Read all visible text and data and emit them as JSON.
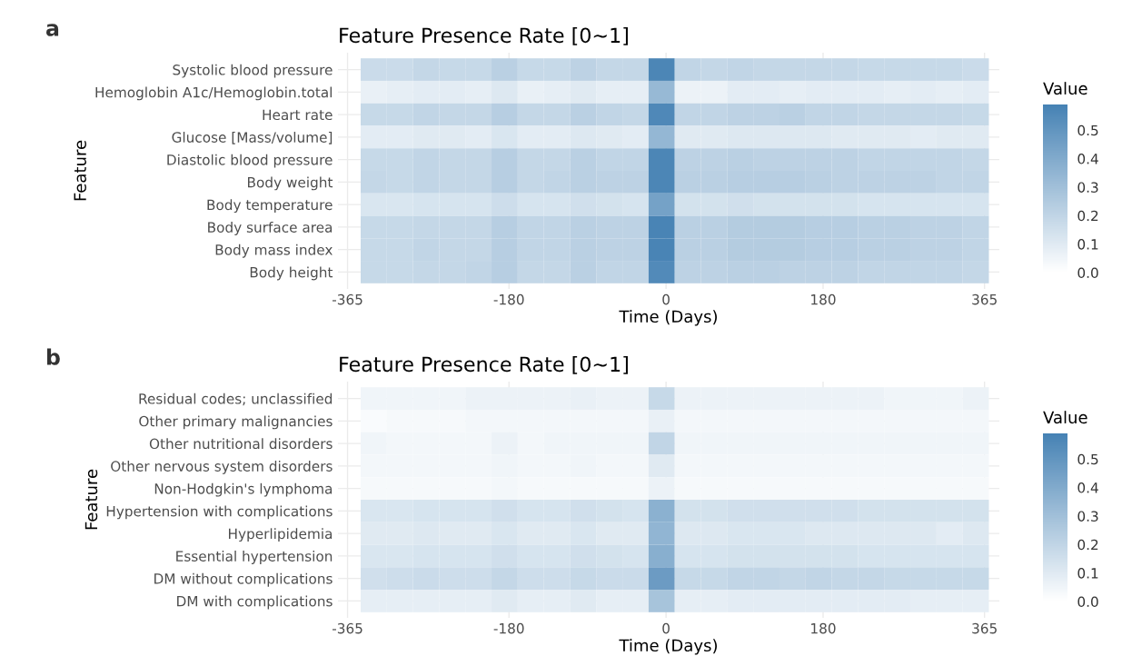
{
  "chart_data": [
    {
      "type": "heatmap",
      "title": "Feature Presence Rate [0~1]",
      "xlabel": "Time (Days)",
      "ylabel": "Feature",
      "clabel": "Value",
      "annotations": [
        "a"
      ],
      "x": [
        -335,
        -305,
        -275,
        -245,
        -215,
        -185,
        -155,
        -125,
        -95,
        -65,
        -35,
        -5,
        25,
        55,
        85,
        115,
        145,
        175,
        205,
        235,
        265,
        295,
        325,
        355
      ],
      "xlim": [
        -376,
        382
      ],
      "xticks": [
        -365,
        -180,
        0,
        180,
        365
      ],
      "grid": true,
      "colors": [
        "#ffffff",
        "#4682b4"
      ],
      "clim": [
        0,
        0.59
      ],
      "cticks": [
        {
          "value": 0,
          "label": "0.0"
        },
        {
          "value": 0.1,
          "label": "0.1"
        },
        {
          "value": 0.2,
          "label": "0.2"
        },
        {
          "value": 0.3,
          "label": "0.3"
        },
        {
          "value": 0.4,
          "label": "0.4"
        },
        {
          "value": 0.5,
          "label": "0.5"
        }
      ],
      "y_categories": [
        "Systolic blood pressure",
        "Hemoglobin A1c/Hemoglobin.total",
        "Heart rate",
        "Glucose [Mass/volume]",
        "Diastolic blood pressure",
        "Body weight",
        "Body temperature",
        "Body surface area",
        "Body mass index",
        "Body height"
      ],
      "cells": [
        [
          0.17,
          0.17,
          0.19,
          0.18,
          0.18,
          0.22,
          0.18,
          0.18,
          0.21,
          0.19,
          0.19,
          0.57,
          0.2,
          0.19,
          0.2,
          0.19,
          0.19,
          0.19,
          0.19,
          0.18,
          0.18,
          0.18,
          0.18,
          0.17
        ],
        [
          0.07,
          0.08,
          0.09,
          0.09,
          0.08,
          0.11,
          0.07,
          0.08,
          0.1,
          0.08,
          0.08,
          0.33,
          0.06,
          0.06,
          0.09,
          0.09,
          0.08,
          0.09,
          0.09,
          0.09,
          0.08,
          0.09,
          0.08,
          0.09
        ],
        [
          0.18,
          0.18,
          0.2,
          0.19,
          0.19,
          0.23,
          0.19,
          0.19,
          0.22,
          0.2,
          0.19,
          0.56,
          0.2,
          0.2,
          0.21,
          0.21,
          0.22,
          0.2,
          0.2,
          0.19,
          0.19,
          0.19,
          0.19,
          0.18
        ],
        [
          0.09,
          0.09,
          0.1,
          0.1,
          0.09,
          0.12,
          0.09,
          0.09,
          0.11,
          0.1,
          0.09,
          0.34,
          0.1,
          0.1,
          0.11,
          0.11,
          0.11,
          0.11,
          0.1,
          0.1,
          0.1,
          0.09,
          0.1,
          0.1
        ],
        [
          0.18,
          0.18,
          0.2,
          0.19,
          0.19,
          0.23,
          0.19,
          0.19,
          0.22,
          0.2,
          0.2,
          0.57,
          0.21,
          0.21,
          0.22,
          0.21,
          0.21,
          0.21,
          0.21,
          0.2,
          0.2,
          0.2,
          0.2,
          0.19
        ],
        [
          0.19,
          0.18,
          0.2,
          0.19,
          0.19,
          0.23,
          0.19,
          0.2,
          0.22,
          0.21,
          0.21,
          0.57,
          0.22,
          0.22,
          0.23,
          0.23,
          0.23,
          0.22,
          0.21,
          0.21,
          0.21,
          0.21,
          0.2,
          0.2
        ],
        [
          0.12,
          0.12,
          0.13,
          0.13,
          0.13,
          0.16,
          0.13,
          0.13,
          0.15,
          0.14,
          0.13,
          0.44,
          0.14,
          0.14,
          0.15,
          0.14,
          0.14,
          0.14,
          0.14,
          0.13,
          0.13,
          0.13,
          0.13,
          0.13
        ],
        [
          0.18,
          0.18,
          0.19,
          0.19,
          0.19,
          0.23,
          0.2,
          0.2,
          0.22,
          0.21,
          0.21,
          0.58,
          0.22,
          0.22,
          0.24,
          0.24,
          0.24,
          0.23,
          0.23,
          0.22,
          0.22,
          0.21,
          0.21,
          0.2
        ],
        [
          0.18,
          0.18,
          0.2,
          0.19,
          0.19,
          0.23,
          0.2,
          0.2,
          0.22,
          0.21,
          0.21,
          0.58,
          0.22,
          0.22,
          0.24,
          0.24,
          0.24,
          0.23,
          0.23,
          0.22,
          0.22,
          0.21,
          0.21,
          0.2
        ],
        [
          0.18,
          0.18,
          0.19,
          0.19,
          0.2,
          0.23,
          0.19,
          0.19,
          0.22,
          0.2,
          0.2,
          0.55,
          0.21,
          0.21,
          0.22,
          0.22,
          0.21,
          0.21,
          0.21,
          0.2,
          0.2,
          0.2,
          0.2,
          0.19
        ]
      ]
    },
    {
      "type": "heatmap",
      "title": "Feature Presence Rate [0~1]",
      "xlabel": "Time (Days)",
      "ylabel": "Feature",
      "clabel": "Value",
      "annotations": [
        "b"
      ],
      "x": [
        -335,
        -305,
        -275,
        -245,
        -215,
        -185,
        -155,
        -125,
        -95,
        -65,
        -35,
        -5,
        25,
        55,
        85,
        115,
        145,
        175,
        205,
        235,
        265,
        295,
        325,
        355
      ],
      "xlim": [
        -376,
        382
      ],
      "xticks": [
        -365,
        -180,
        0,
        180,
        365
      ],
      "grid": true,
      "colors": [
        "#ffffff",
        "#4682b4"
      ],
      "clim": [
        0,
        0.59
      ],
      "cticks": [
        {
          "value": 0,
          "label": "0.0"
        },
        {
          "value": 0.1,
          "label": "0.1"
        },
        {
          "value": 0.2,
          "label": "0.2"
        },
        {
          "value": 0.3,
          "label": "0.3"
        },
        {
          "value": 0.4,
          "label": "0.4"
        },
        {
          "value": 0.5,
          "label": "0.5"
        }
      ],
      "y_categories": [
        "Residual codes; unclassified",
        "Other primary malignancies",
        "Other nutritional disorders",
        "Other nervous system disorders",
        "Non-Hodgkin's lymphoma",
        "Hypertension with complications",
        "Hyperlipidemia",
        "Essential hypertension",
        "DM without complications",
        "DM with complications"
      ],
      "cells": [
        [
          0.05,
          0.05,
          0.05,
          0.05,
          0.06,
          0.06,
          0.06,
          0.06,
          0.07,
          0.06,
          0.06,
          0.18,
          0.06,
          0.06,
          0.06,
          0.06,
          0.06,
          0.06,
          0.06,
          0.06,
          0.05,
          0.05,
          0.05,
          0.06
        ],
        [
          0.02,
          0.03,
          0.03,
          0.03,
          0.04,
          0.04,
          0.04,
          0.04,
          0.04,
          0.04,
          0.04,
          0.07,
          0.04,
          0.04,
          0.04,
          0.04,
          0.04,
          0.04,
          0.04,
          0.04,
          0.04,
          0.04,
          0.04,
          0.04
        ],
        [
          0.05,
          0.04,
          0.04,
          0.04,
          0.04,
          0.06,
          0.04,
          0.05,
          0.05,
          0.05,
          0.05,
          0.2,
          0.05,
          0.05,
          0.05,
          0.05,
          0.05,
          0.05,
          0.05,
          0.05,
          0.05,
          0.05,
          0.05,
          0.05
        ],
        [
          0.04,
          0.04,
          0.04,
          0.04,
          0.04,
          0.05,
          0.04,
          0.04,
          0.05,
          0.04,
          0.04,
          0.1,
          0.04,
          0.04,
          0.04,
          0.04,
          0.04,
          0.04,
          0.04,
          0.04,
          0.04,
          0.04,
          0.04,
          0.04
        ],
        [
          0.03,
          0.03,
          0.03,
          0.03,
          0.03,
          0.04,
          0.03,
          0.03,
          0.03,
          0.03,
          0.03,
          0.06,
          0.03,
          0.03,
          0.03,
          0.03,
          0.03,
          0.03,
          0.03,
          0.03,
          0.03,
          0.03,
          0.03,
          0.03
        ],
        [
          0.12,
          0.12,
          0.13,
          0.13,
          0.13,
          0.15,
          0.13,
          0.13,
          0.15,
          0.14,
          0.13,
          0.37,
          0.14,
          0.14,
          0.15,
          0.15,
          0.15,
          0.15,
          0.15,
          0.14,
          0.14,
          0.14,
          0.14,
          0.14
        ],
        [
          0.1,
          0.1,
          0.11,
          0.1,
          0.1,
          0.12,
          0.1,
          0.1,
          0.12,
          0.1,
          0.1,
          0.35,
          0.11,
          0.11,
          0.12,
          0.12,
          0.12,
          0.11,
          0.11,
          0.11,
          0.11,
          0.11,
          0.09,
          0.11
        ],
        [
          0.12,
          0.12,
          0.13,
          0.13,
          0.13,
          0.15,
          0.13,
          0.13,
          0.15,
          0.14,
          0.13,
          0.38,
          0.13,
          0.13,
          0.14,
          0.14,
          0.14,
          0.14,
          0.14,
          0.13,
          0.13,
          0.13,
          0.13,
          0.13
        ],
        [
          0.15,
          0.16,
          0.17,
          0.16,
          0.16,
          0.19,
          0.16,
          0.16,
          0.18,
          0.17,
          0.17,
          0.47,
          0.18,
          0.18,
          0.2,
          0.2,
          0.19,
          0.2,
          0.19,
          0.19,
          0.18,
          0.18,
          0.18,
          0.18
        ],
        [
          0.08,
          0.08,
          0.08,
          0.08,
          0.08,
          0.1,
          0.08,
          0.08,
          0.1,
          0.08,
          0.08,
          0.28,
          0.08,
          0.08,
          0.09,
          0.09,
          0.09,
          0.09,
          0.09,
          0.09,
          0.09,
          0.08,
          0.08,
          0.08
        ]
      ]
    }
  ]
}
